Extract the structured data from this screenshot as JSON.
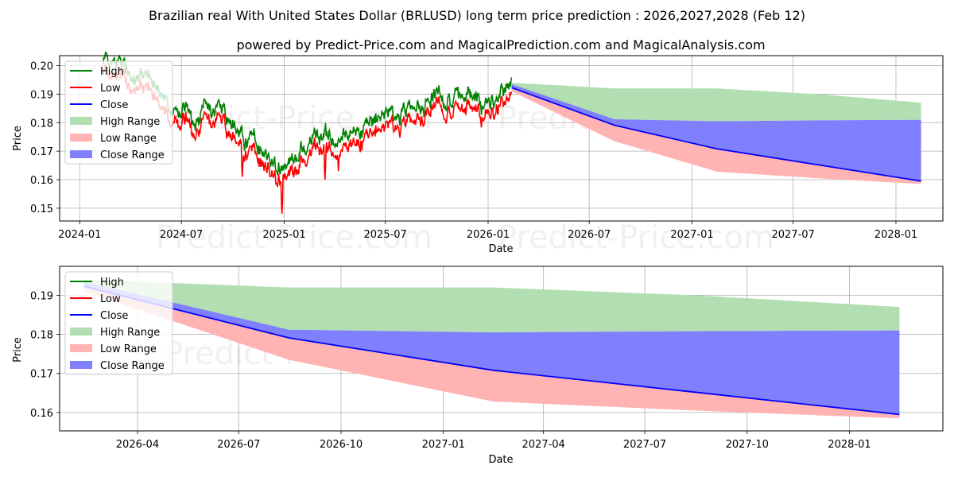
{
  "title": "Brazilian real With United States Dollar (BRLUSD) long term price prediction : 2026,2027,2028 (Feb 12)",
  "subtitle": "powered by Predict-Price.com and MagicalPrediction.com and MagicalAnalysis.com",
  "watermark": "Predict-Price.com",
  "colors": {
    "high": "#008000",
    "low": "#ff0000",
    "close": "#0000ff",
    "high_range": "#b2dfb2",
    "low_range": "#ffb3b3",
    "close_range": "#8080ff"
  },
  "legend": [
    "High",
    "Low",
    "Close",
    "High Range",
    "Low Range",
    "Close Range"
  ],
  "chart_data": [
    {
      "type": "line",
      "title": "",
      "xlabel": "Date",
      "ylabel": "Price",
      "ylim": [
        0.1455,
        0.2035
      ],
      "xlim": [
        "2023-11-26",
        "2028-03-25"
      ],
      "grid": true,
      "legend_position": "top-left",
      "x_ticks": [
        "2024-01",
        "2024-07",
        "2025-01",
        "2025-07",
        "2026-01",
        "2026-07",
        "2027-01",
        "2027-07",
        "2028-01"
      ],
      "x_tick_dates": [
        "2024-01-01",
        "2024-07-01",
        "2025-01-01",
        "2025-07-01",
        "2026-01-01",
        "2026-07-01",
        "2027-01-01",
        "2027-07-01",
        "2028-01-01"
      ],
      "y_ticks": [
        0.15,
        0.16,
        0.17,
        0.18,
        0.19,
        0.2
      ],
      "historical_anchors": {
        "dates": [
          "2024-02-12",
          "2024-03-05",
          "2024-03-20",
          "2024-04-05",
          "2024-04-20",
          "2024-05-05",
          "2024-05-20",
          "2024-06-01",
          "2024-06-15",
          "2024-06-25",
          "2024-07-10",
          "2024-07-25",
          "2024-08-10",
          "2024-08-25",
          "2024-09-10",
          "2024-09-25",
          "2024-10-10",
          "2024-10-25",
          "2024-11-10",
          "2024-11-25",
          "2024-12-10",
          "2024-12-20",
          "2025-01-05",
          "2025-01-20",
          "2025-02-05",
          "2025-02-20",
          "2025-03-05",
          "2025-03-20",
          "2025-04-05",
          "2025-04-20",
          "2025-05-05",
          "2025-05-20",
          "2025-06-05",
          "2025-06-20",
          "2025-07-05",
          "2025-07-20",
          "2025-08-05",
          "2025-08-20",
          "2025-09-05",
          "2025-09-20",
          "2025-10-05",
          "2025-10-20",
          "2025-11-05",
          "2025-11-20",
          "2025-12-05",
          "2025-12-20",
          "2026-01-05",
          "2026-01-20",
          "2026-02-12"
        ],
        "close": [
          0.201,
          0.2,
          0.197,
          0.194,
          0.195,
          0.194,
          0.19,
          0.186,
          0.182,
          0.18,
          0.183,
          0.176,
          0.182,
          0.18,
          0.183,
          0.178,
          0.176,
          0.172,
          0.172,
          0.167,
          0.164,
          0.162,
          0.163,
          0.166,
          0.171,
          0.174,
          0.172,
          0.173,
          0.171,
          0.174,
          0.176,
          0.175,
          0.178,
          0.18,
          0.183,
          0.179,
          0.181,
          0.185,
          0.184,
          0.187,
          0.188,
          0.185,
          0.186,
          0.188,
          0.187,
          0.184,
          0.185,
          0.188,
          0.192
        ],
        "low_spikes": [
          {
            "date": "2024-10-18",
            "value": 0.161
          },
          {
            "date": "2024-12-28",
            "value": 0.148
          },
          {
            "date": "2025-03-15",
            "value": 0.16
          },
          {
            "date": "2025-04-08",
            "value": 0.163
          }
        ]
      },
      "forecast": {
        "dates": [
          "2026-02-12",
          "2026-08-15",
          "2027-02-15",
          "2027-08-15",
          "2028-02-15"
        ],
        "close": [
          0.1923,
          0.1791,
          0.1708,
          0.1652,
          0.1595
        ],
        "high_range_top": [
          0.194,
          0.192,
          0.192,
          0.19,
          0.187
        ],
        "high_range_bottom": [
          0.192,
          0.1812,
          0.1805,
          0.1808,
          0.181
        ],
        "low_range_top": [
          0.192,
          0.179,
          0.1708,
          0.1652,
          0.1595
        ],
        "low_range_bottom": [
          0.191,
          0.1735,
          0.1628,
          0.1605,
          0.1585
        ],
        "close_range_top": [
          0.1935,
          0.1812,
          0.1805,
          0.1808,
          0.181
        ],
        "close_range_bottom": [
          0.192,
          0.1791,
          0.1708,
          0.1652,
          0.1595
        ]
      }
    },
    {
      "type": "line",
      "title": "",
      "xlabel": "Date",
      "ylabel": "Price",
      "ylim": [
        0.1553,
        0.1974
      ],
      "xlim": [
        "2026-01-21",
        "2028-03-25"
      ],
      "grid": true,
      "legend_position": "top-left",
      "x_ticks": [
        "2026-04",
        "2026-07",
        "2026-10",
        "2027-01",
        "2027-04",
        "2027-07",
        "2027-10",
        "2028-01"
      ],
      "x_tick_dates": [
        "2026-04-01",
        "2026-07-01",
        "2026-10-01",
        "2027-01-01",
        "2027-04-01",
        "2027-07-01",
        "2027-10-01",
        "2028-01-01"
      ],
      "y_ticks": [
        0.16,
        0.17,
        0.18,
        0.19
      ],
      "forecast_ref": 0
    }
  ]
}
